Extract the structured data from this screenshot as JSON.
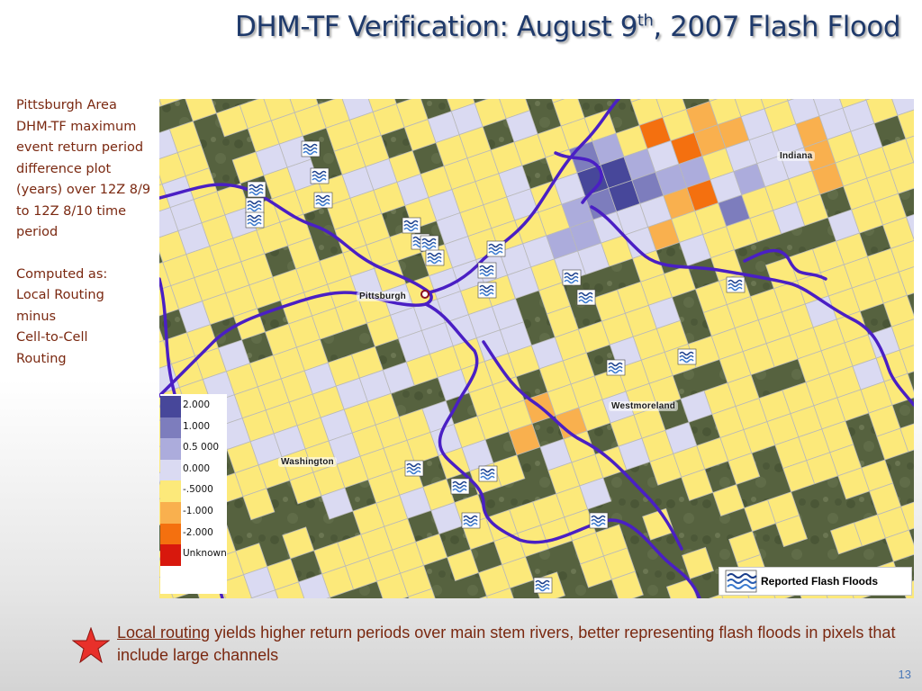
{
  "slide": {
    "title_main": "DHM-TF Verification:  August 9",
    "title_sup": "th",
    "title_end": ", 2007 Flash Flood",
    "page_number": "13"
  },
  "side_text": {
    "description": "Pittsburgh Area DHM-TF maximum event return period difference plot (years) over 12Z 8/9 to 12Z 8/10 time period",
    "computed_lines": [
      "Computed as:",
      "Local Routing",
      "minus",
      "Cell-to-Cell",
      "Routing"
    ]
  },
  "map": {
    "place_labels": [
      "Indiana",
      "Pittsburgh",
      "Westmoreland",
      "Washington"
    ],
    "legend": [
      {
        "label": "2.000",
        "color": "#47479a"
      },
      {
        "label": "1.000",
        "color": "#7d7dbd"
      },
      {
        "label": "0.5 000",
        "color": "#acacdc"
      },
      {
        "label": "0.000",
        "color": "#dadaf2"
      },
      {
        "label": "-.5000",
        "color": "#fce97a"
      },
      {
        "label": "-1.000",
        "color": "#f9b04e"
      },
      {
        "label": "-2.000",
        "color": "#f4700f"
      },
      {
        "label": "Unknown",
        "color": "#d8180d"
      }
    ],
    "flood_legend_label": "Reported Flash Floods",
    "colors": {
      "river": "#4a1fc4",
      "grid_line": "#b9b9b9",
      "terrain": "#54603f"
    },
    "icon": "flash-flood-wave-icon"
  },
  "bottom": {
    "link_text": "Local routing",
    "rest_text": " yields higher return periods over main stem rivers,  better representing flash floods in pixels that include large channels",
    "star_icon": "red-star-icon",
    "star_color": "#e8302a"
  }
}
